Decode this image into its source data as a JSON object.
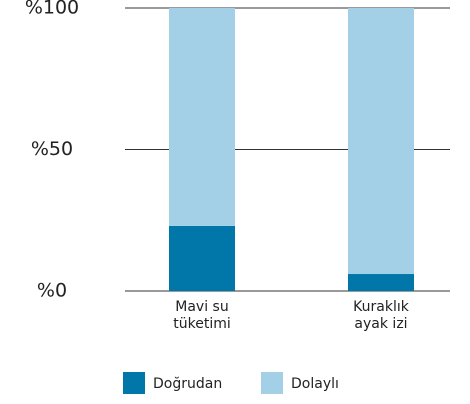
{
  "chart_data": {
    "type": "stacked_bar",
    "categories": [
      "Mavi su tüketimi",
      "Kuraklık ayak izi"
    ],
    "series": [
      {
        "name": "Doğrudan",
        "color": "#0077a8",
        "values": [
          23,
          6
        ]
      },
      {
        "name": "Dolaylı",
        "color": "#a3d0e6",
        "values": [
          77,
          94
        ]
      }
    ],
    "ylim": [
      0,
      100
    ],
    "yticks": [
      {
        "value": 0,
        "label": "%0"
      },
      {
        "value": 50,
        "label": "%50"
      },
      {
        "value": 100,
        "label": "%100"
      }
    ],
    "grid": true
  }
}
